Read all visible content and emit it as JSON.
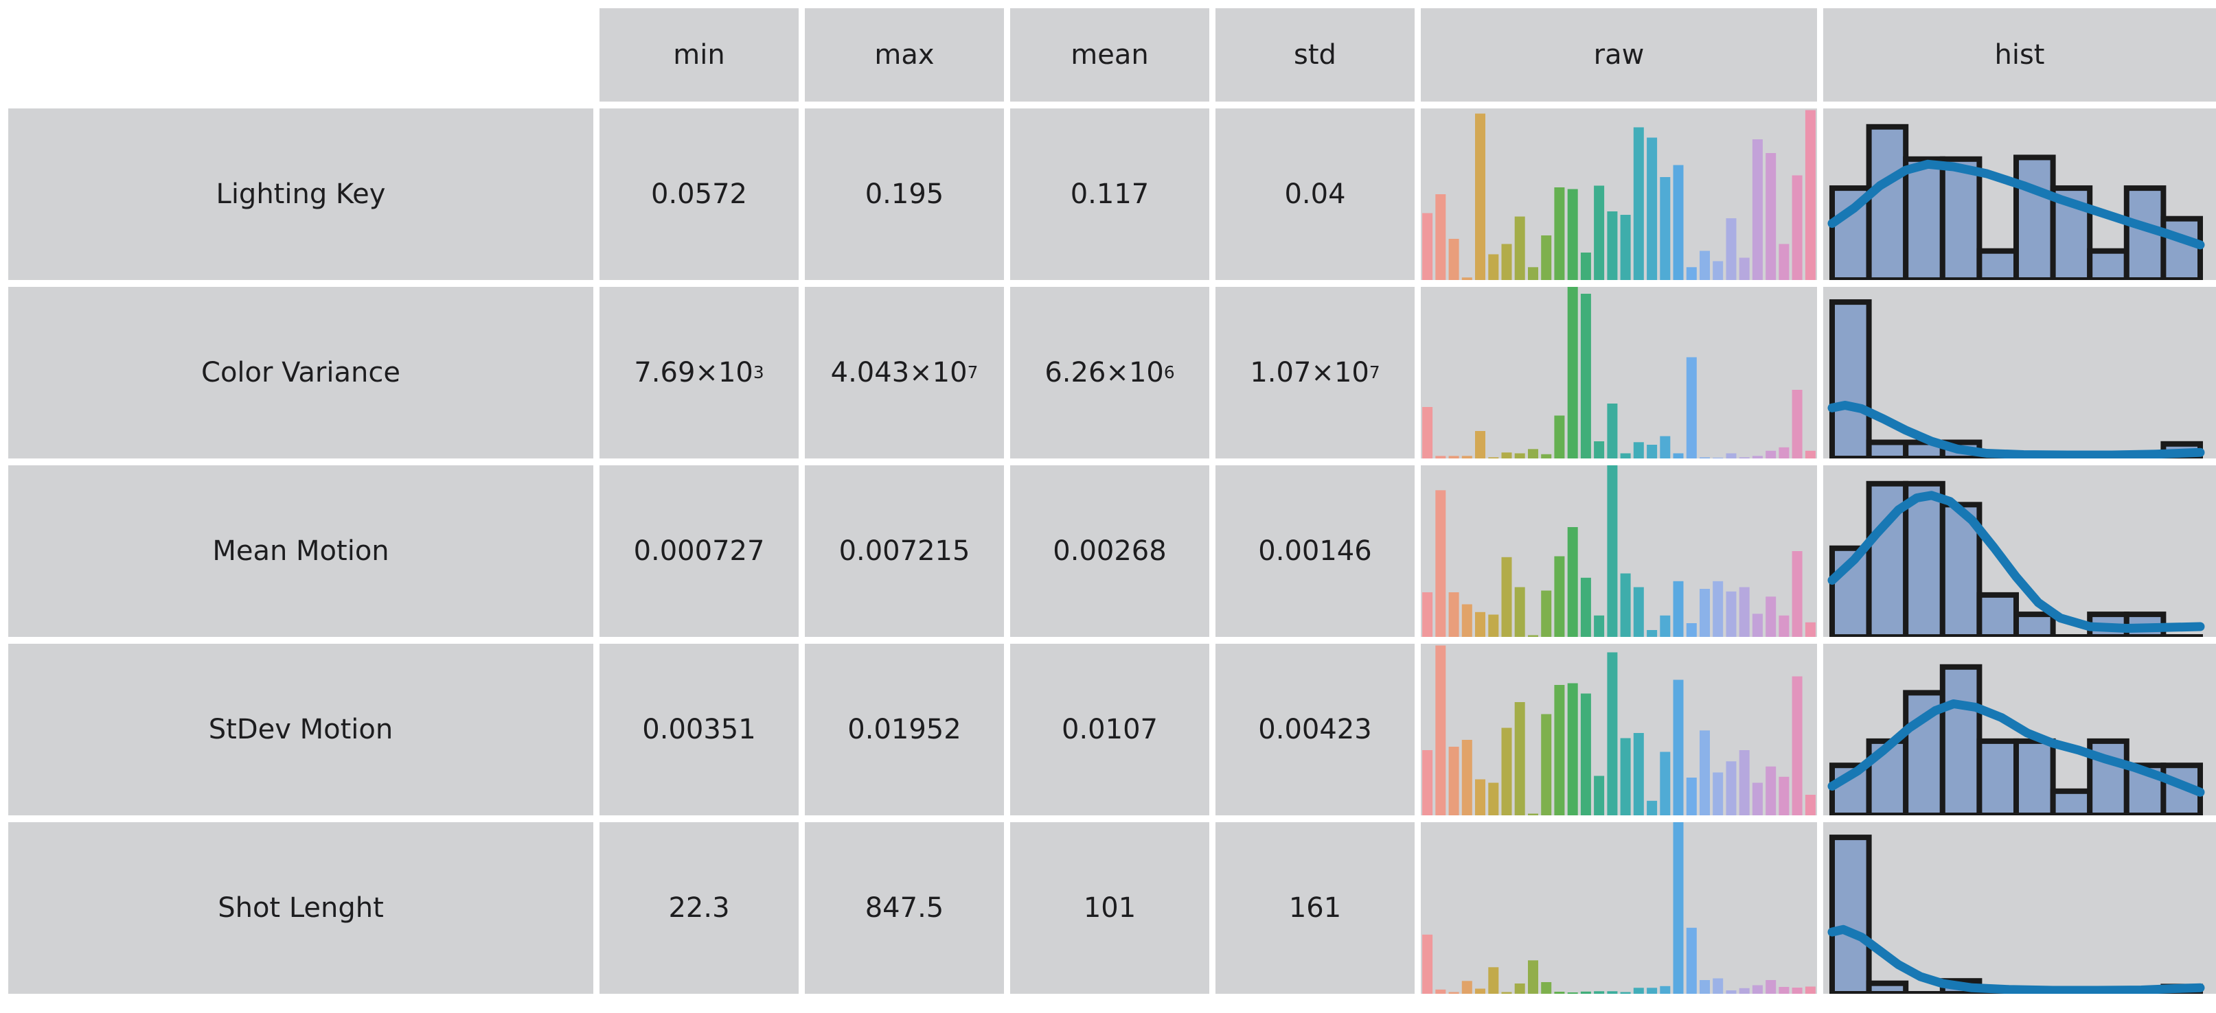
{
  "table": {
    "columns": [
      "min",
      "max",
      "mean",
      "std",
      "raw",
      "hist"
    ],
    "rows": [
      {
        "label": "Lighting Key",
        "values": [
          {
            "m": "0.0572",
            "e": ""
          },
          {
            "m": "0.195",
            "e": ""
          },
          {
            "m": "0.117",
            "e": ""
          },
          {
            "m": "0.04",
            "e": ""
          }
        ]
      },
      {
        "label": "Color Variance",
        "values": [
          {
            "m": "7.69×10",
            "e": "3"
          },
          {
            "m": "4.043×10",
            "e": "7"
          },
          {
            "m": "6.26×10",
            "e": "6"
          },
          {
            "m": "1.07×10",
            "e": "7"
          }
        ]
      },
      {
        "label": "Mean Motion",
        "values": [
          {
            "m": "0.000727",
            "e": ""
          },
          {
            "m": "0.007215",
            "e": ""
          },
          {
            "m": "0.00268",
            "e": ""
          },
          {
            "m": "0.00146",
            "e": ""
          }
        ]
      },
      {
        "label": "StDev Motion",
        "values": [
          {
            "m": "0.00351",
            "e": ""
          },
          {
            "m": "0.01952",
            "e": ""
          },
          {
            "m": "0.0107",
            "e": ""
          },
          {
            "m": "0.00423",
            "e": ""
          }
        ]
      },
      {
        "label": "Shot Lenght",
        "values": [
          {
            "m": "22.3",
            "e": ""
          },
          {
            "m": "847.5",
            "e": ""
          },
          {
            "m": "101",
            "e": ""
          },
          {
            "m": "161",
            "e": ""
          }
        ]
      }
    ]
  },
  "chart_data": [
    {
      "row": "Lighting Key",
      "raw": {
        "type": "bar",
        "n": 30,
        "values": [
          0.39,
          0.5,
          0.24,
          0.015,
          0.97,
          0.15,
          0.21,
          0.37,
          0.075,
          0.26,
          0.54,
          0.53,
          0.16,
          0.55,
          0.4,
          0.38,
          0.89,
          0.83,
          0.6,
          0.67,
          0.075,
          0.17,
          0.11,
          0.36,
          0.13,
          0.82,
          0.74,
          0.21,
          0.61,
          0.99
        ]
      },
      "hist": {
        "type": "histogram",
        "bins": 10,
        "heights": [
          0.57,
          0.95,
          0.75,
          0.75,
          0.18,
          0.76,
          0.57,
          0.18,
          0.57,
          0.38
        ],
        "kde": [
          [
            0.0,
            0.33
          ],
          [
            0.06,
            0.42
          ],
          [
            0.13,
            0.55
          ],
          [
            0.2,
            0.64
          ],
          [
            0.26,
            0.675
          ],
          [
            0.33,
            0.66
          ],
          [
            0.42,
            0.62
          ],
          [
            0.52,
            0.55
          ],
          [
            0.62,
            0.47
          ],
          [
            0.72,
            0.4
          ],
          [
            0.82,
            0.33
          ],
          [
            0.91,
            0.27
          ],
          [
            1.0,
            0.205
          ]
        ]
      }
    },
    {
      "row": "Color Variance",
      "raw": {
        "type": "bar",
        "n": 30,
        "values": [
          0.3,
          0.015,
          0.015,
          0.015,
          0.16,
          0.007,
          0.035,
          0.03,
          0.055,
          0.025,
          0.25,
          1.0,
          0.96,
          0.1,
          0.32,
          0.03,
          0.095,
          0.08,
          0.13,
          0.03,
          0.59,
          0.007,
          0.005,
          0.03,
          0.007,
          0.015,
          0.045,
          0.065,
          0.4,
          0.045
        ]
      },
      "hist": {
        "type": "histogram",
        "bins": 10,
        "heights": [
          0.97,
          0.1,
          0.1,
          0.1,
          0.03,
          0,
          0,
          0,
          0,
          0.09
        ],
        "kde": [
          [
            0.0,
            0.295
          ],
          [
            0.035,
            0.31
          ],
          [
            0.08,
            0.29
          ],
          [
            0.14,
            0.23
          ],
          [
            0.2,
            0.165
          ],
          [
            0.27,
            0.1
          ],
          [
            0.34,
            0.055
          ],
          [
            0.42,
            0.03
          ],
          [
            0.52,
            0.022
          ],
          [
            0.64,
            0.02
          ],
          [
            0.76,
            0.02
          ],
          [
            0.88,
            0.025
          ],
          [
            1.0,
            0.035
          ]
        ]
      }
    },
    {
      "row": "Mean Motion",
      "raw": {
        "type": "bar",
        "n": 30,
        "values": [
          0.26,
          0.855,
          0.26,
          0.19,
          0.145,
          0.13,
          0.465,
          0.29,
          0.01,
          0.27,
          0.47,
          0.64,
          0.345,
          0.125,
          1.0,
          0.37,
          0.29,
          0.04,
          0.125,
          0.325,
          0.08,
          0.28,
          0.325,
          0.265,
          0.29,
          0.135,
          0.235,
          0.125,
          0.5,
          0.085
        ]
      },
      "hist": {
        "type": "histogram",
        "bins": 10,
        "heights": [
          0.55,
          0.95,
          0.95,
          0.82,
          0.26,
          0.14,
          0,
          0.14,
          0.14,
          0
        ],
        "kde": [
          [
            0.0,
            0.33
          ],
          [
            0.06,
            0.45
          ],
          [
            0.12,
            0.6
          ],
          [
            0.18,
            0.74
          ],
          [
            0.23,
            0.81
          ],
          [
            0.27,
            0.825
          ],
          [
            0.32,
            0.79
          ],
          [
            0.38,
            0.68
          ],
          [
            0.44,
            0.52
          ],
          [
            0.5,
            0.35
          ],
          [
            0.56,
            0.2
          ],
          [
            0.62,
            0.11
          ],
          [
            0.7,
            0.06
          ],
          [
            0.8,
            0.05
          ],
          [
            0.9,
            0.055
          ],
          [
            1.0,
            0.06
          ]
        ]
      }
    },
    {
      "row": "StDev Motion",
      "raw": {
        "type": "bar",
        "n": 30,
        "values": [
          0.38,
          0.99,
          0.4,
          0.44,
          0.21,
          0.19,
          0.51,
          0.66,
          0.01,
          0.59,
          0.76,
          0.77,
          0.71,
          0.23,
          0.95,
          0.45,
          0.48,
          0.085,
          0.37,
          0.79,
          0.22,
          0.495,
          0.25,
          0.315,
          0.38,
          0.19,
          0.285,
          0.225,
          0.81,
          0.12
        ]
      },
      "hist": {
        "type": "histogram",
        "bins": 10,
        "heights": [
          0.31,
          0.46,
          0.76,
          0.92,
          0.46,
          0.46,
          0.15,
          0.46,
          0.31,
          0.31
        ],
        "kde": [
          [
            0.0,
            0.17
          ],
          [
            0.07,
            0.26
          ],
          [
            0.14,
            0.38
          ],
          [
            0.21,
            0.51
          ],
          [
            0.28,
            0.61
          ],
          [
            0.33,
            0.65
          ],
          [
            0.39,
            0.63
          ],
          [
            0.46,
            0.57
          ],
          [
            0.53,
            0.48
          ],
          [
            0.6,
            0.42
          ],
          [
            0.67,
            0.38
          ],
          [
            0.74,
            0.33
          ],
          [
            0.82,
            0.28
          ],
          [
            0.9,
            0.22
          ],
          [
            1.0,
            0.135
          ]
        ]
      }
    },
    {
      "row": "Shot Lenght",
      "raw": {
        "type": "bar",
        "n": 30,
        "values": [
          0.345,
          0.025,
          0.01,
          0.075,
          0.03,
          0.155,
          0.01,
          0.06,
          0.195,
          0.068,
          0.012,
          0.008,
          0.013,
          0.015,
          0.015,
          0.01,
          0.035,
          0.035,
          0.045,
          1.0,
          0.385,
          0.08,
          0.09,
          0.02,
          0.033,
          0.05,
          0.08,
          0.04,
          0.036,
          0.042
        ]
      },
      "hist": {
        "type": "histogram",
        "bins": 10,
        "heights": [
          0.97,
          0.065,
          0,
          0.08,
          0,
          0,
          0,
          0,
          0,
          0.045
        ],
        "kde": [
          [
            0.0,
            0.36
          ],
          [
            0.03,
            0.375
          ],
          [
            0.08,
            0.33
          ],
          [
            0.13,
            0.25
          ],
          [
            0.18,
            0.17
          ],
          [
            0.24,
            0.1
          ],
          [
            0.3,
            0.06
          ],
          [
            0.38,
            0.035
          ],
          [
            0.48,
            0.025
          ],
          [
            0.6,
            0.02
          ],
          [
            0.72,
            0.02
          ],
          [
            0.84,
            0.022
          ],
          [
            0.93,
            0.03
          ],
          [
            1.0,
            0.035
          ]
        ]
      }
    }
  ],
  "palette": [
    "#f0999c",
    "#ee9b8c",
    "#e99e7b",
    "#e1a368",
    "#d3a854",
    "#c2aa4b",
    "#b2ac49",
    "#a3ad49",
    "#92ae4b",
    "#7eb04d",
    "#64b051",
    "#4caf5f",
    "#40ae79",
    "#3dae8e",
    "#3cad9d",
    "#3eadab",
    "#42adb9",
    "#48acc7",
    "#50abd5",
    "#5aa9e1",
    "#70adea",
    "#8bb2e9",
    "#9cb2e7",
    "#aaaee3",
    "#b6a8de",
    "#c3a2d9",
    "#ce9cd2",
    "#d997c9",
    "#e294bd",
    "#ec93ad"
  ],
  "colors": {
    "cell_bg": "#d1d2d4",
    "gap": "#ffffff",
    "text": "#1d1d1f",
    "hist_fill": "#8ba3c9",
    "hist_edge": "#1a1a1a",
    "kde": "#1878b4"
  }
}
